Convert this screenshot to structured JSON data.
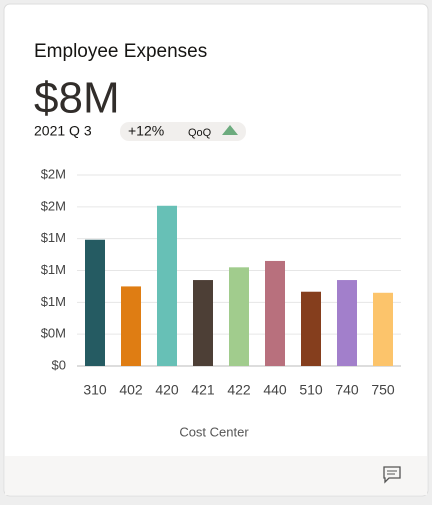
{
  "chart_data": {
    "type": "bar",
    "title": "Employee Expenses",
    "headline": "$8M",
    "period": "2021 Q 3",
    "change": "+12%",
    "change_basis": "QoQ",
    "x_label": "Cost Center",
    "categories": [
      "310",
      "402",
      "420",
      "421",
      "422",
      "440",
      "510",
      "740",
      "750"
    ],
    "values": [
      1190000,
      750000,
      1510000,
      810000,
      930000,
      990000,
      700000,
      810000,
      690000
    ],
    "colors": [
      "#255b62",
      "#df7d13",
      "#67c0b6",
      "#4d3f36",
      "#a1cc8d",
      "#b8707d",
      "#853e1d",
      "#a27fcb",
      "#fcc46b"
    ],
    "ylim": [
      0,
      1800000
    ],
    "yticks": [
      {
        "value": 0,
        "label": "$0"
      },
      {
        "value": 300000,
        "label": "$0M"
      },
      {
        "value": 600000,
        "label": "$1M"
      },
      {
        "value": 900000,
        "label": "$1M"
      },
      {
        "value": 1200000,
        "label": "$1M"
      },
      {
        "value": 1500000,
        "label": "$2M"
      },
      {
        "value": 1800000,
        "label": "$2M"
      }
    ],
    "grid": true
  }
}
